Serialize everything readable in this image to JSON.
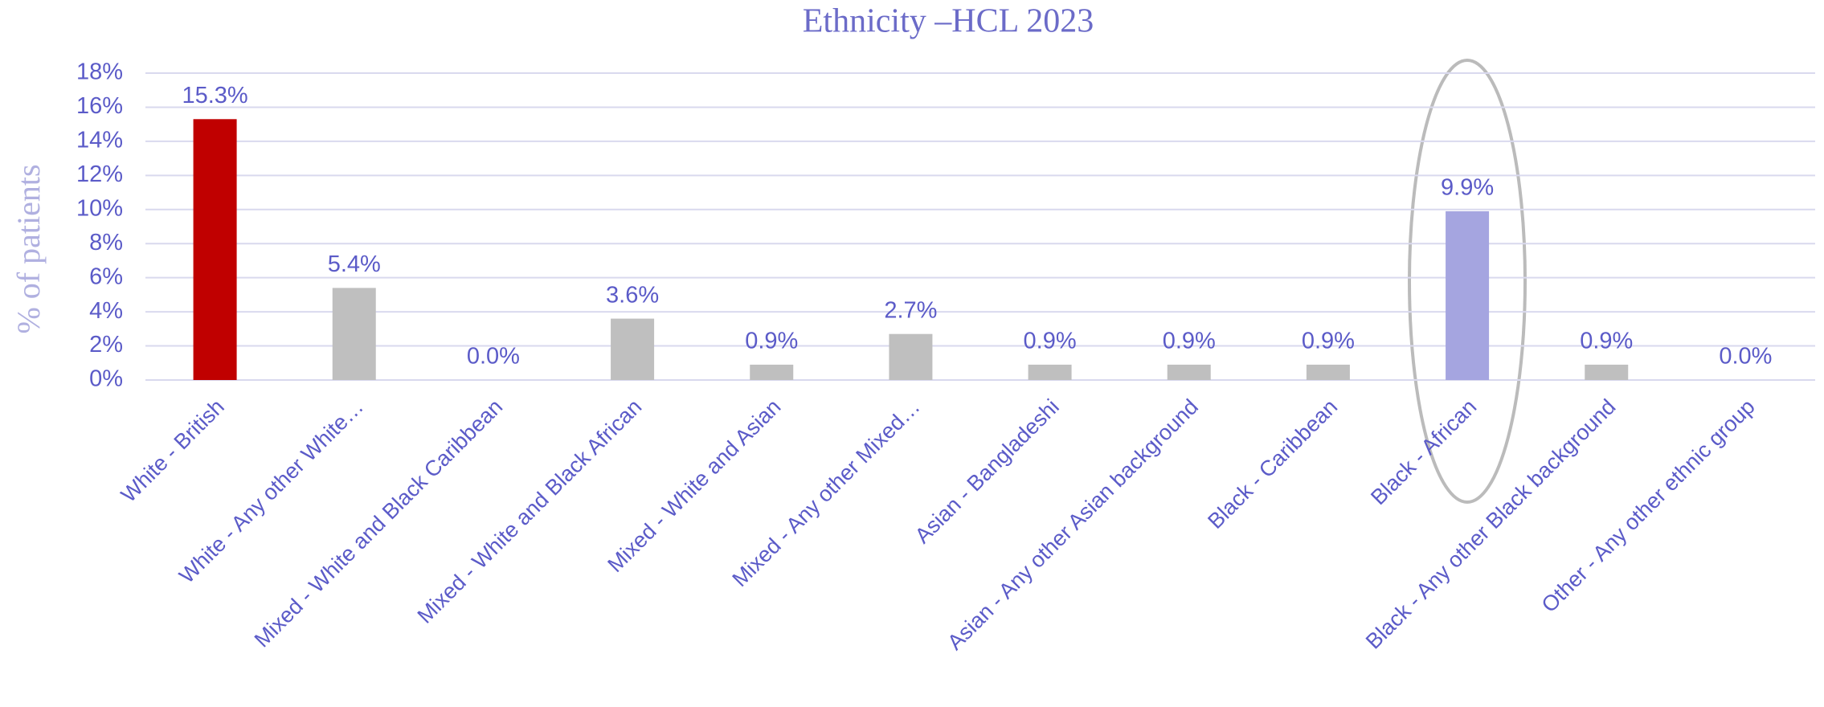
{
  "chart_data": {
    "type": "bar",
    "title": "Ethnicity –HCL 2023",
    "y_label": "% of patients",
    "categories": [
      "White - British",
      "White - Any other White…",
      "Mixed - White and Black Caribbean",
      "Mixed - White and Black African",
      "Mixed - White and Asian",
      "Mixed - Any other Mixed…",
      "Asian - Bangladeshi",
      "Asian - Any other Asian background",
      "Black - Caribbean",
      "Black - African",
      "Black - Any other Black background",
      "Other - Any other ethnic group"
    ],
    "values": [
      15.3,
      5.4,
      0.0,
      3.6,
      0.9,
      2.7,
      0.9,
      0.9,
      0.9,
      9.9,
      0.9,
      0.0
    ],
    "value_labels": [
      "15.3%",
      "5.4%",
      "0.0%",
      "3.6%",
      "0.9%",
      "2.7%",
      "0.9%",
      "0.9%",
      "0.9%",
      "9.9%",
      "0.9%",
      "0.0%"
    ],
    "colors": [
      "#c00000",
      "#bfbfbf",
      "#bfbfbf",
      "#bfbfbf",
      "#bfbfbf",
      "#bfbfbf",
      "#bfbfbf",
      "#bfbfbf",
      "#bfbfbf",
      "#a5a5e0",
      "#bfbfbf",
      "#bfbfbf"
    ],
    "ylim": [
      0,
      18
    ],
    "yticks": [
      {
        "value": 0,
        "label": "0%"
      },
      {
        "value": 2,
        "label": "2%"
      },
      {
        "value": 4,
        "label": "4%"
      },
      {
        "value": 6,
        "label": "6%"
      },
      {
        "value": 8,
        "label": "8%"
      },
      {
        "value": 10,
        "label": "10%"
      },
      {
        "value": 12,
        "label": "12%"
      },
      {
        "value": 14,
        "label": "14%"
      },
      {
        "value": 16,
        "label": "16%"
      },
      {
        "value": 18,
        "label": "18%"
      }
    ],
    "grid": true
  }
}
